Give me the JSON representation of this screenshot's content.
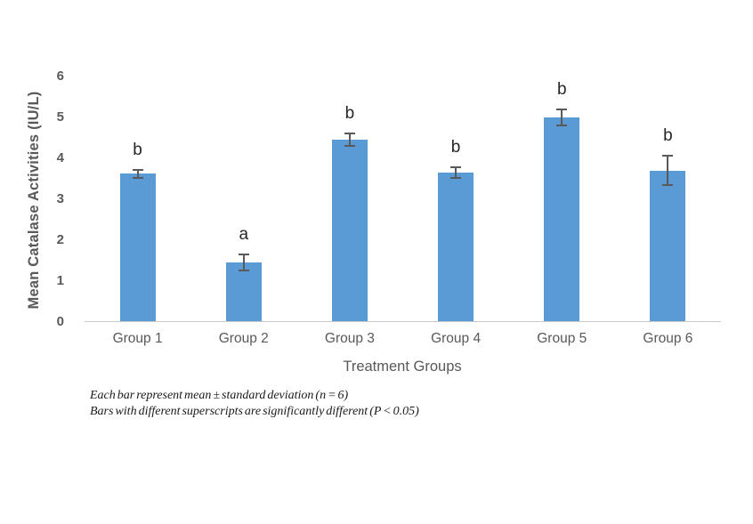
{
  "chart_data": {
    "type": "bar",
    "title": "",
    "xlabel": "Treatment Groups",
    "ylabel": "Mean Catalase Activities (IU/L)",
    "categories": [
      "Group 1",
      "Group 2",
      "Group 3",
      "Group 4",
      "Group 5",
      "Group 6"
    ],
    "values": [
      3.62,
      1.45,
      4.45,
      3.65,
      5.0,
      3.7
    ],
    "errors": [
      0.13,
      0.22,
      0.17,
      0.16,
      0.21,
      0.38
    ],
    "superscripts": [
      "b",
      "a",
      "b",
      "b",
      "b",
      "b"
    ],
    "ylim": [
      0,
      6
    ],
    "yticks": [
      0,
      1,
      2,
      3,
      4,
      5,
      6
    ],
    "grid": false,
    "legend": "none",
    "bar_color": "#5b9bd5",
    "error_color": "#595959",
    "axis_text_color": "#595959",
    "axis_line_color": "#c9c9c9",
    "annotation_color": "#262626"
  },
  "caption": {
    "line1": "Each bar represent mean ± standard deviation (n = 6)",
    "line2": "Bars with different superscripts are significantly different (P < 0.05)"
  }
}
